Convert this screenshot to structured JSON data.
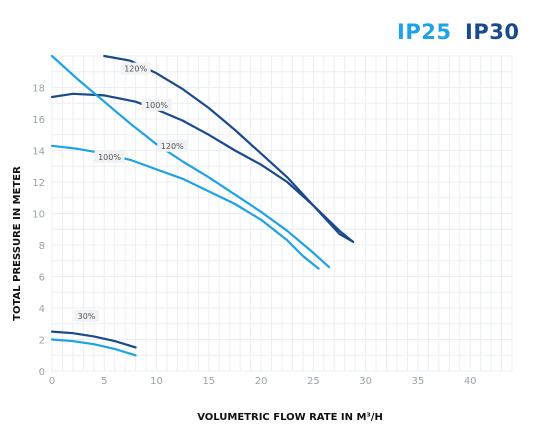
{
  "brand": {
    "ip25": {
      "label": "IP25",
      "color": "#1fa3e4"
    },
    "ip30": {
      "label": "IP30",
      "color": "#1b4a8c"
    }
  },
  "chart_data": {
    "type": "line",
    "title": "",
    "xlabel": "VOLUMETRIC FLOW RATE IN M³/H",
    "ylabel": "TOTAL PRESSURE IN METER",
    "xlim": [
      0,
      44
    ],
    "ylim": [
      0,
      20
    ],
    "x_ticks": [
      0,
      5,
      10,
      15,
      20,
      25,
      30,
      35,
      40
    ],
    "y_ticks": [
      0,
      2,
      4,
      6,
      8,
      10,
      12,
      14,
      16,
      18
    ],
    "grid": true,
    "series": [
      {
        "key": "ip30_120",
        "color": "#1b4a8c",
        "points": [
          [
            5,
            20
          ],
          [
            7.5,
            19.7
          ],
          [
            10,
            18.9
          ],
          [
            12.5,
            17.9
          ],
          [
            15,
            16.7
          ],
          [
            17.5,
            15.3
          ],
          [
            20,
            13.8
          ],
          [
            22.5,
            12.3
          ],
          [
            25,
            10.5
          ],
          [
            27.5,
            8.7
          ],
          [
            28.8,
            8.2
          ]
        ]
      },
      {
        "key": "ip30_100",
        "color": "#1b4a8c",
        "points": [
          [
            0,
            17.4
          ],
          [
            2,
            17.6
          ],
          [
            5,
            17.5
          ],
          [
            8,
            17.1
          ],
          [
            10,
            16.6
          ],
          [
            12.5,
            15.9
          ],
          [
            15,
            15.0
          ],
          [
            17.5,
            14.0
          ],
          [
            20,
            13.1
          ],
          [
            22.5,
            12.0
          ],
          [
            25,
            10.5
          ],
          [
            27.5,
            8.9
          ],
          [
            28.8,
            8.2
          ]
        ]
      },
      {
        "key": "ip25_120",
        "color": "#1fa3e4",
        "points": [
          [
            0,
            20
          ],
          [
            2.5,
            18.5
          ],
          [
            5,
            17.1
          ],
          [
            7.5,
            15.7
          ],
          [
            10,
            14.4
          ],
          [
            12.5,
            13.3
          ],
          [
            15,
            12.3
          ],
          [
            17.5,
            11.2
          ],
          [
            20,
            10.1
          ],
          [
            22.5,
            8.9
          ],
          [
            25,
            7.5
          ],
          [
            26.5,
            6.6
          ]
        ]
      },
      {
        "key": "ip25_100",
        "color": "#1fa3e4",
        "points": [
          [
            0,
            14.3
          ],
          [
            2.5,
            14.1
          ],
          [
            5,
            13.8
          ],
          [
            7.5,
            13.4
          ],
          [
            10,
            12.8
          ],
          [
            12.5,
            12.2
          ],
          [
            15,
            11.4
          ],
          [
            17.5,
            10.6
          ],
          [
            20,
            9.6
          ],
          [
            22.5,
            8.3
          ],
          [
            24,
            7.3
          ],
          [
            25.5,
            6.5
          ]
        ]
      },
      {
        "key": "ip30_30",
        "color": "#1b4a8c",
        "points": [
          [
            0,
            2.5
          ],
          [
            2,
            2.4
          ],
          [
            4,
            2.2
          ],
          [
            6,
            1.9
          ],
          [
            8,
            1.5
          ]
        ]
      },
      {
        "key": "ip25_30",
        "color": "#1fa3e4",
        "points": [
          [
            0,
            2.0
          ],
          [
            2,
            1.9
          ],
          [
            4,
            1.7
          ],
          [
            6,
            1.4
          ],
          [
            8,
            1.0
          ]
        ]
      }
    ],
    "annotations": [
      {
        "text": "120%",
        "x": 8,
        "y": 19.2
      },
      {
        "text": "100%",
        "x": 10,
        "y": 16.9
      },
      {
        "text": "120%",
        "x": 11.5,
        "y": 14.3
      },
      {
        "text": "100%",
        "x": 5.5,
        "y": 13.6
      },
      {
        "text": "30%",
        "x": 3.3,
        "y": 3.5
      }
    ]
  }
}
